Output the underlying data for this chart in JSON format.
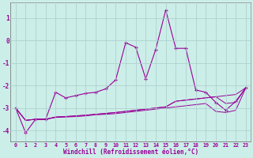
{
  "xlabel": "Windchill (Refroidissement éolien,°C)",
  "background_color": "#cceee8",
  "grid_color": "#aacccc",
  "line_color": "#990099",
  "x_values": [
    0,
    1,
    2,
    3,
    4,
    5,
    6,
    7,
    8,
    9,
    10,
    11,
    12,
    13,
    14,
    15,
    16,
    17,
    18,
    19,
    20,
    21,
    22,
    23
  ],
  "main_line": [
    -3.0,
    -4.1,
    -3.5,
    -3.5,
    -2.3,
    -2.55,
    -2.45,
    -2.35,
    -2.3,
    -2.15,
    -1.75,
    -0.1,
    -0.3,
    -1.7,
    -0.4,
    1.35,
    -0.35,
    -0.35,
    -2.2,
    -2.3,
    -2.75,
    -3.1,
    -2.7,
    -2.1
  ],
  "line2": [
    -3.0,
    -3.55,
    -3.5,
    -3.5,
    -3.4,
    -3.38,
    -3.35,
    -3.32,
    -3.28,
    -3.24,
    -3.2,
    -3.15,
    -3.1,
    -3.05,
    -3.0,
    -2.95,
    -2.7,
    -2.65,
    -2.6,
    -2.55,
    -2.5,
    -2.8,
    -2.75,
    -2.1
  ],
  "line3": [
    -3.0,
    -3.55,
    -3.5,
    -3.5,
    -3.4,
    -3.38,
    -3.35,
    -3.32,
    -3.28,
    -3.24,
    -3.2,
    -3.15,
    -3.1,
    -3.05,
    -3.0,
    -2.95,
    -2.7,
    -2.65,
    -2.6,
    -2.55,
    -2.5,
    -2.45,
    -2.4,
    -2.1
  ],
  "line4": [
    -3.0,
    -3.55,
    -3.5,
    -3.5,
    -3.42,
    -3.4,
    -3.38,
    -3.35,
    -3.3,
    -3.28,
    -3.25,
    -3.2,
    -3.15,
    -3.1,
    -3.05,
    -3.0,
    -2.95,
    -2.9,
    -2.85,
    -2.8,
    -3.15,
    -3.2,
    -3.1,
    -2.1
  ],
  "ylim": [
    -4.5,
    1.7
  ],
  "yticks": [
    -4,
    -3,
    -2,
    -1,
    0,
    1
  ],
  "xticks": [
    0,
    1,
    2,
    3,
    4,
    5,
    6,
    7,
    8,
    9,
    10,
    11,
    12,
    13,
    14,
    15,
    16,
    17,
    18,
    19,
    20,
    21,
    22,
    23
  ]
}
